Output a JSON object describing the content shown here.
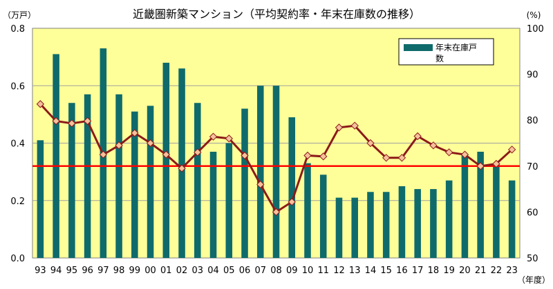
{
  "chart_data": {
    "type": "bar+line",
    "title": "近畿圏新築マンション（平均契約率・年末在庫数の推移）",
    "left_unit": "（万戸）",
    "right_unit": "(%)",
    "x_unit": "（年度）",
    "categories": [
      "93",
      "94",
      "95",
      "96",
      "97",
      "98",
      "99",
      "00",
      "01",
      "02",
      "03",
      "04",
      "05",
      "06",
      "07",
      "08",
      "09",
      "10",
      "11",
      "12",
      "13",
      "14",
      "15",
      "16",
      "17",
      "18",
      "19",
      "20",
      "21",
      "22",
      "23"
    ],
    "left_axis": {
      "min": 0.0,
      "max": 0.8,
      "ticks": [
        "0.0",
        "0.2",
        "0.4",
        "0.6",
        "0.8"
      ]
    },
    "right_axis": {
      "min": 50,
      "max": 100,
      "ticks": [
        "50",
        "60",
        "70",
        "80",
        "90",
        "100"
      ]
    },
    "series": [
      {
        "name": "年末在庫戸数",
        "type": "bar",
        "axis": "left",
        "color": "#0f6b6b",
        "values": [
          0.41,
          0.71,
          0.54,
          0.57,
          0.73,
          0.57,
          0.51,
          0.53,
          0.68,
          0.66,
          0.54,
          0.37,
          0.4,
          0.52,
          0.6,
          0.6,
          0.49,
          0.33,
          0.29,
          0.21,
          0.21,
          0.23,
          0.23,
          0.25,
          0.24,
          0.24,
          0.27,
          0.36,
          0.37,
          0.33,
          0.27
        ]
      },
      {
        "type": "line",
        "axis": "right",
        "color": "#8b1a1a",
        "marker_color": "#f5c09a",
        "values": [
          83.5,
          79.8,
          79.3,
          79.8,
          72.5,
          74.5,
          77.2,
          75.0,
          72.5,
          69.5,
          73.0,
          76.4,
          76.0,
          72.3,
          66.0,
          60.0,
          62.2,
          72.3,
          72.1,
          78.4,
          78.8,
          75.0,
          71.8,
          71.8,
          76.5,
          74.5,
          73.0,
          72.5,
          70.0,
          70.5,
          73.6
        ]
      }
    ],
    "reference_line": {
      "value": 70,
      "axis": "right",
      "color": "#ff0000"
    },
    "legend": {
      "position": "top-right",
      "label": "年末在庫戸数"
    },
    "plot_background": "#ffff99",
    "grid": true
  }
}
